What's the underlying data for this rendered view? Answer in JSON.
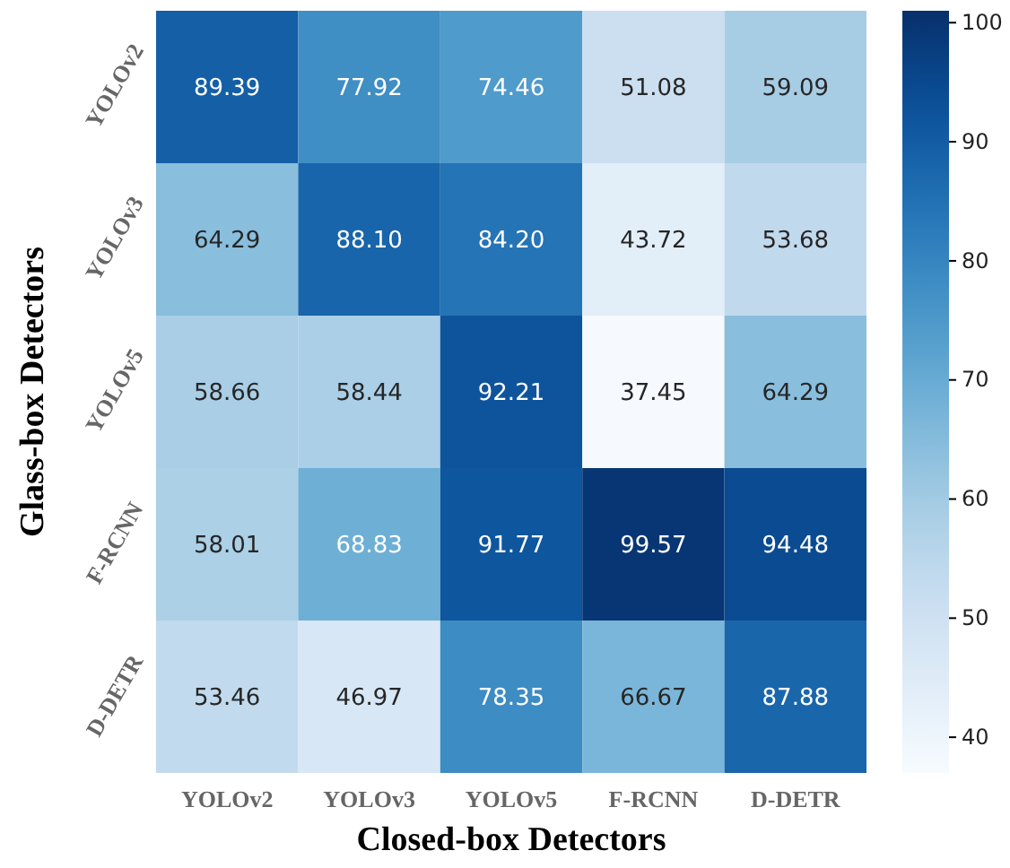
{
  "chart_data": {
    "type": "heatmap",
    "xlabel": "Closed-box Detectors",
    "ylabel": "Glass-box Detectors",
    "categories": [
      "YOLOv2",
      "YOLOv3",
      "YOLOv5",
      "F-RCNN",
      "D-DETR"
    ],
    "y_categories": [
      "YOLOv2",
      "YOLOv3",
      "YOLOv5",
      "F-RCNN",
      "D-DETR"
    ],
    "cells": [
      [
        89.39,
        77.92,
        74.46,
        51.08,
        59.09
      ],
      [
        64.29,
        88.1,
        84.2,
        43.72,
        53.68
      ],
      [
        58.66,
        58.44,
        92.21,
        37.45,
        64.29
      ],
      [
        58.01,
        68.83,
        91.77,
        99.57,
        94.48
      ],
      [
        53.46,
        46.97,
        78.35,
        66.67,
        87.88
      ]
    ],
    "cell_labels": [
      [
        "89.39",
        "77.92",
        "74.46",
        "51.08",
        "59.09"
      ],
      [
        "64.29",
        "88.10",
        "84.20",
        "43.72",
        "53.68"
      ],
      [
        "58.66",
        "58.44",
        "92.21",
        "37.45",
        "64.29"
      ],
      [
        "58.01",
        "68.83",
        "91.77",
        "99.57",
        "94.48"
      ],
      [
        "53.46",
        "46.97",
        "78.35",
        "66.67",
        "87.88"
      ]
    ],
    "clim": [
      37,
      101
    ],
    "cticks": [
      40,
      50,
      60,
      70,
      80,
      90,
      100
    ]
  }
}
